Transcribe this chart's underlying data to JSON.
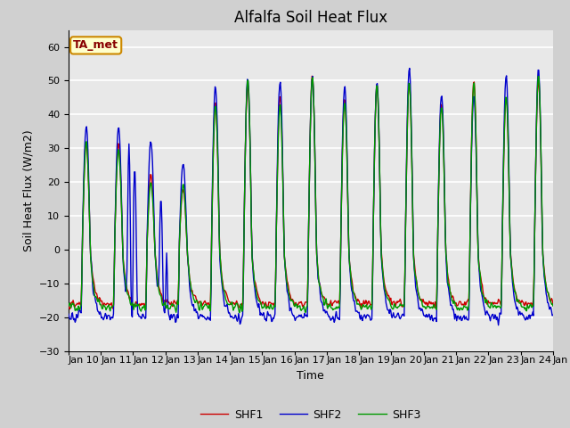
{
  "title": "Alfalfa Soil Heat Flux",
  "xlabel": "Time",
  "ylabel": "Soil Heat Flux (W/m2)",
  "ylim": [
    -30,
    65
  ],
  "yticks": [
    -30,
    -20,
    -10,
    0,
    10,
    20,
    30,
    40,
    50,
    60
  ],
  "shf1_color": "#cc0000",
  "shf2_color": "#0000cc",
  "shf3_color": "#009900",
  "annotation_text": "TA_met",
  "annotation_bg": "#ffffcc",
  "annotation_border": "#cc8800",
  "legend_labels": [
    "SHF1",
    "SHF2",
    "SHF3"
  ],
  "fig_bg_color": "#d0d0d0",
  "plot_bg_color": "#e8e8e8",
  "grid_color": "#ffffff",
  "title_fontsize": 12,
  "axis_fontsize": 9,
  "tick_fontsize": 8,
  "linewidth": 1.0
}
